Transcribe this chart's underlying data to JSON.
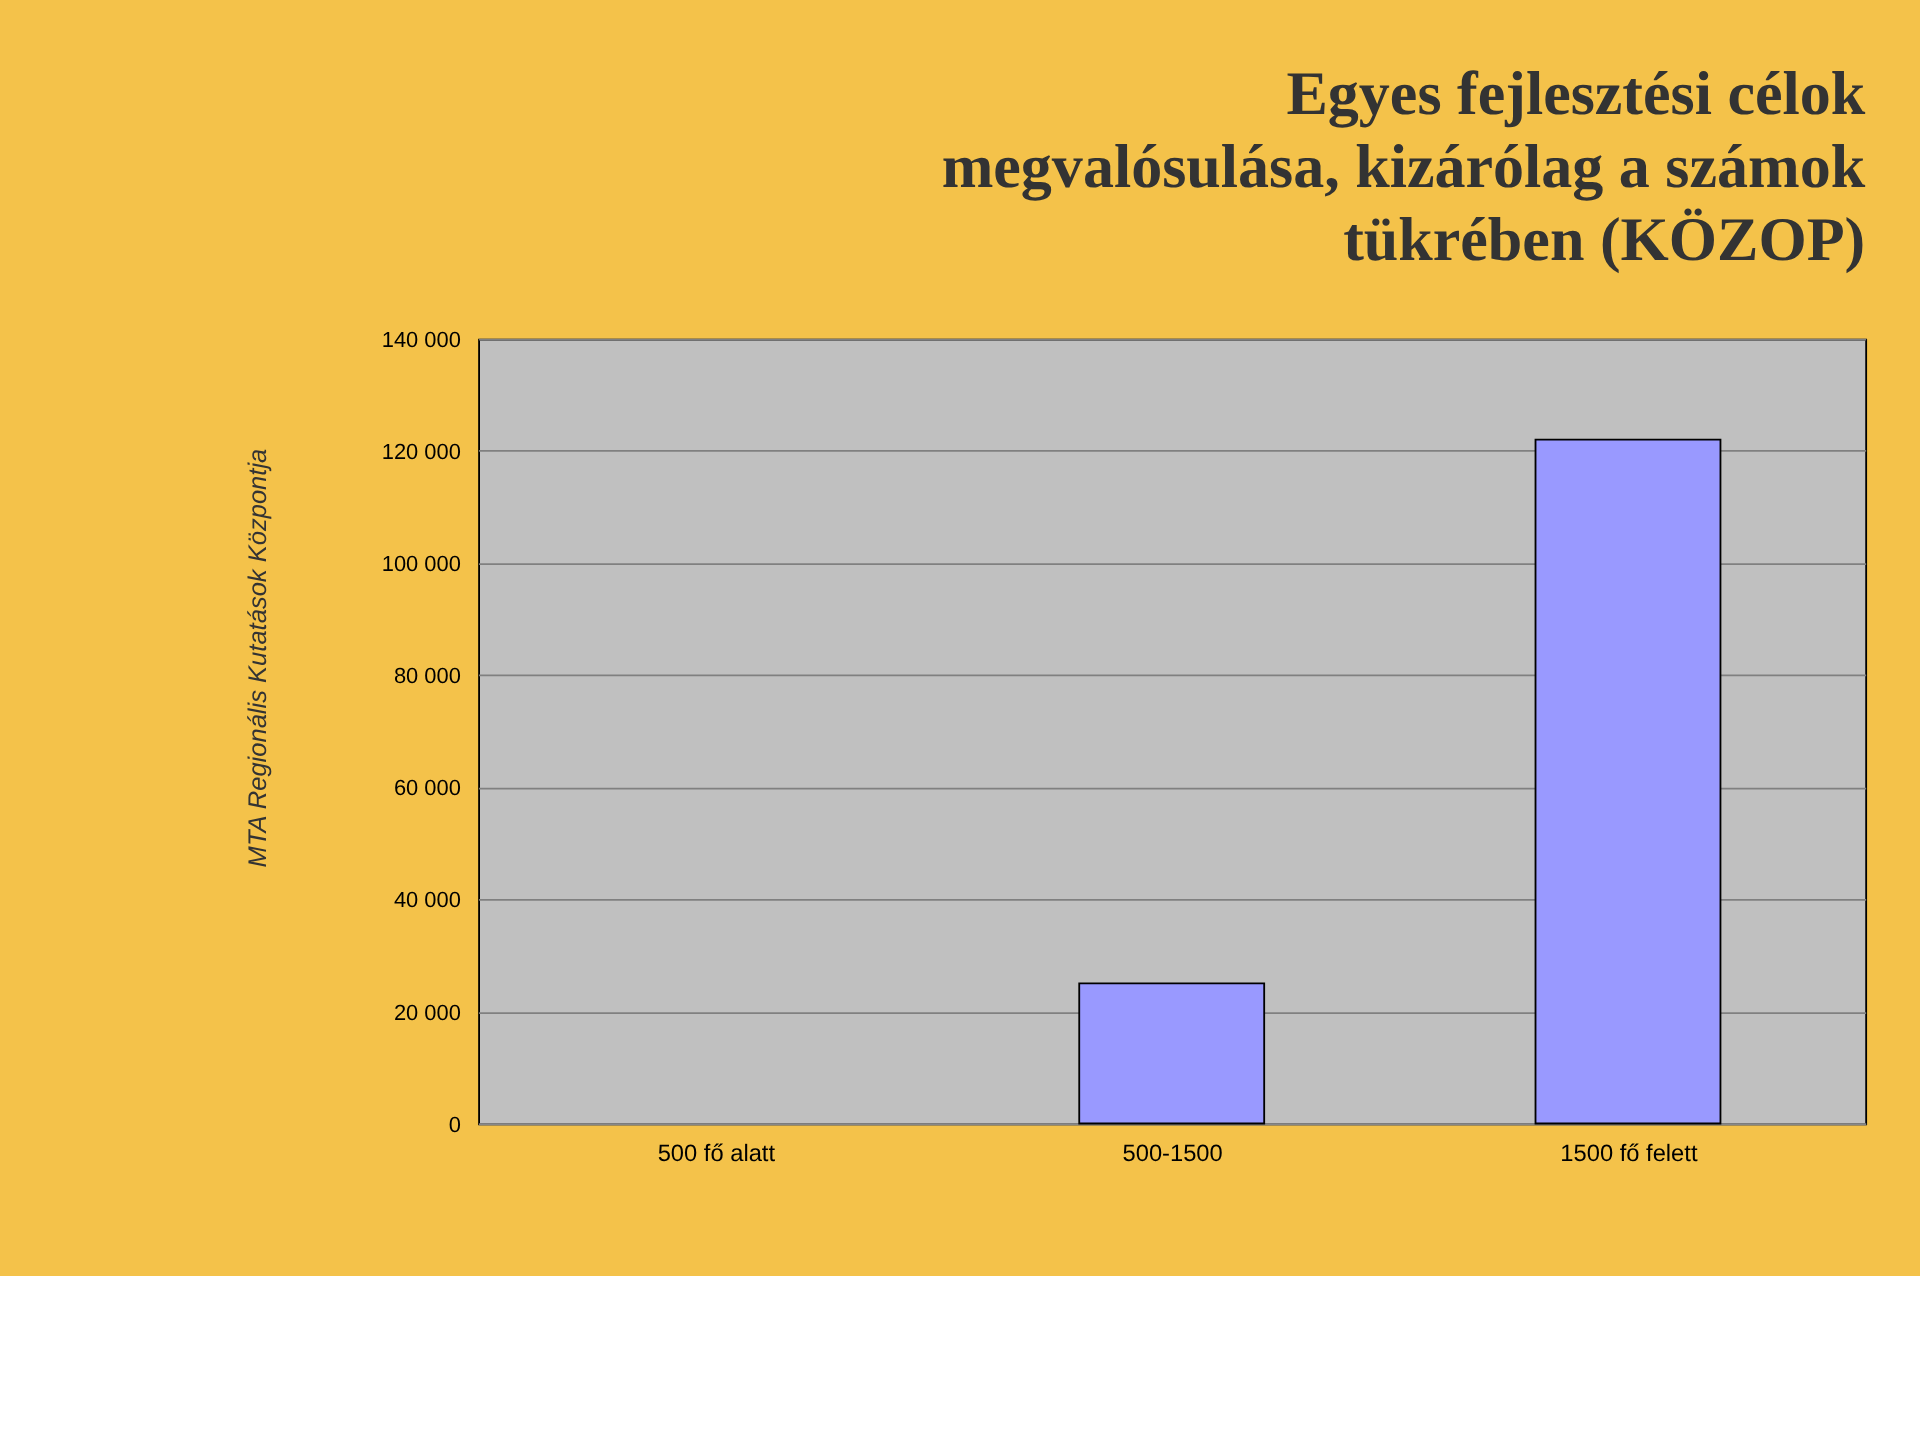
{
  "chart_data": {
    "type": "bar",
    "title": [
      "Egyes fejlesztési célok",
      "megvalósulása, kizárólag a számok",
      "tükrében (KÖZOP)"
    ],
    "categories": [
      "500 fő alatt",
      "500-1500",
      "1500 fő felett"
    ],
    "values": [
      null,
      25000,
      122000
    ],
    "color": "#9999ff",
    "ylim": [
      0,
      140000
    ],
    "yticks": [
      {
        "value": 0,
        "label": "0"
      },
      {
        "value": 20000,
        "label": "20 000"
      },
      {
        "value": 40000,
        "label": "40 000"
      },
      {
        "value": 60000,
        "label": "60 000"
      },
      {
        "value": 80000,
        "label": "80 000"
      },
      {
        "value": 100000,
        "label": "100 000"
      },
      {
        "value": 120000,
        "label": "120 000"
      },
      {
        "value": 140000,
        "label": "140 000"
      }
    ],
    "grid": "y",
    "annotations": [
      "MTA Regionális Kutatások Központja"
    ]
  }
}
